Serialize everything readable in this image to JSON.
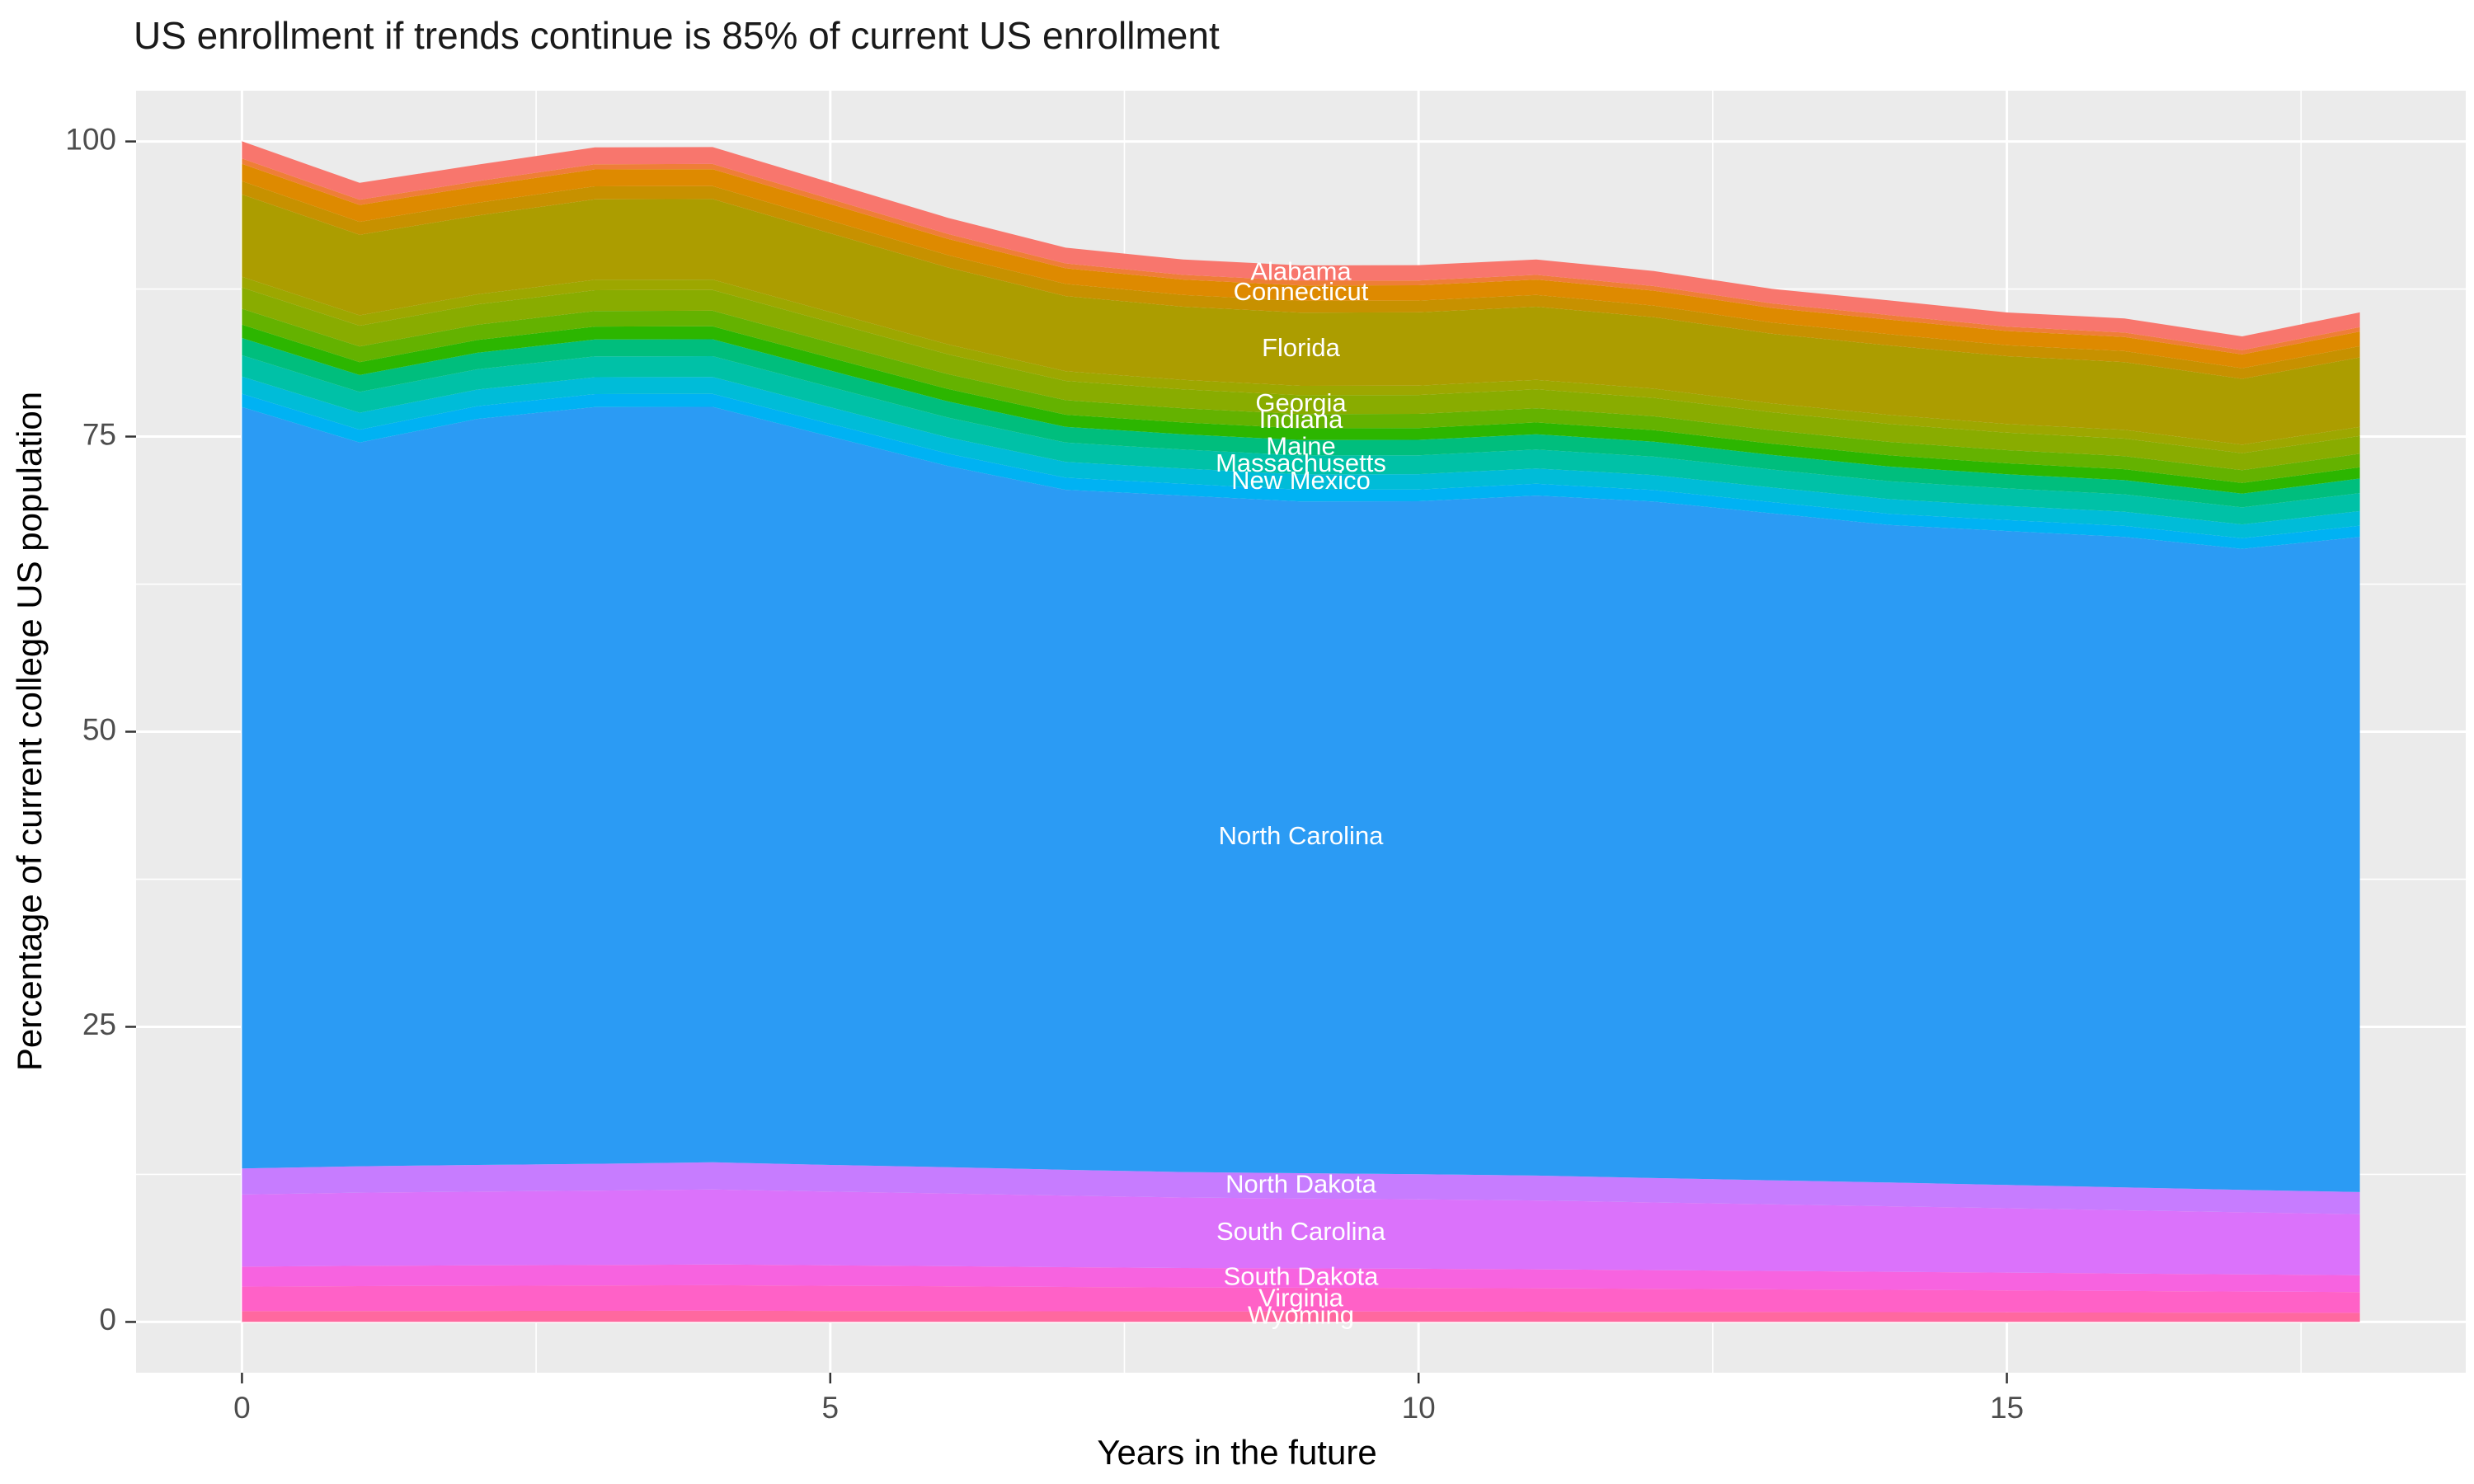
{
  "page": {
    "background": "#FFFFFF"
  },
  "chart_data": {
    "type": "area",
    "stacked": true,
    "title": "US enrollment if trends continue is 85% of current US enrollment",
    "xlabel": "Years in the future",
    "ylabel": "Percentage of current college US population",
    "panel_bg": "#EBEBEB",
    "grid_color": "#FFFFFF",
    "tick_label_color": "#4D4D4D",
    "tick_mark_color": "#333333",
    "series_label_color": "#FFFFFF",
    "x": [
      0,
      1,
      2,
      3,
      4,
      5,
      6,
      7,
      8,
      9,
      10,
      11,
      12,
      13,
      14,
      15,
      16,
      17,
      18
    ],
    "x_ticks": [
      0,
      5,
      10,
      15
    ],
    "y_ticks": [
      0,
      25,
      50,
      75,
      100
    ],
    "x_minor": [
      2.5,
      7.5,
      12.5,
      17.5
    ],
    "y_minor": [
      12.5,
      37.5,
      62.5,
      87.5
    ],
    "x_domain": [
      -0.9,
      18.9
    ],
    "y_domain": [
      -4.3,
      104.3
    ],
    "label_x": 9,
    "series": [
      {
        "name": "Wyoming",
        "color": "#FF689F",
        "values": [
          0.91,
          0.92,
          0.93,
          0.94,
          0.95,
          0.93,
          0.92,
          0.9,
          0.89,
          0.88,
          0.88,
          0.87,
          0.85,
          0.84,
          0.83,
          0.81,
          0.8,
          0.78,
          0.77
        ]
      },
      {
        "name": "Virginia",
        "color": "#FF61C7",
        "values": [
          2.08,
          2.11,
          2.13,
          2.14,
          2.16,
          2.13,
          2.1,
          2.06,
          2.03,
          2.02,
          2.0,
          1.98,
          1.95,
          1.92,
          1.89,
          1.86,
          1.82,
          1.79,
          1.76
        ]
      },
      {
        "name": "South Dakota",
        "color": "#F763E0",
        "values": [
          1.69,
          1.72,
          1.73,
          1.74,
          1.76,
          1.73,
          1.7,
          1.68,
          1.65,
          1.64,
          1.63,
          1.61,
          1.59,
          1.56,
          1.53,
          1.51,
          1.48,
          1.46,
          1.43
        ]
      },
      {
        "name": "South Carolina",
        "color": "#DB72FB",
        "values": [
          6.11,
          6.2,
          6.25,
          6.3,
          6.35,
          6.25,
          6.16,
          6.06,
          5.97,
          5.92,
          5.88,
          5.83,
          5.73,
          5.64,
          5.55,
          5.45,
          5.36,
          5.26,
          5.17
        ]
      },
      {
        "name": "North Dakota",
        "color": "#C77CFF",
        "values": [
          2.21,
          2.24,
          2.26,
          2.28,
          2.3,
          2.26,
          2.23,
          2.19,
          2.16,
          2.14,
          2.13,
          2.11,
          2.07,
          2.04,
          2.01,
          1.97,
          1.94,
          1.9,
          1.87
        ]
      },
      {
        "name": "North Carolina",
        "color": "#2B9BF4",
        "values": [
          64.5,
          61.3,
          63.2,
          64.1,
          64.0,
          61.7,
          59.4,
          57.6,
          57.3,
          56.9,
          57.0,
          57.6,
          57.3,
          56.5,
          55.7,
          55.4,
          55.1,
          54.3,
          55.5
        ]
      },
      {
        "name": "",
        "color": "#00B2F3",
        "values": [
          1.13,
          1.1,
          1.08,
          1.1,
          1.1,
          1.08,
          1.05,
          1.03,
          1.0,
          1.0,
          1.0,
          1.0,
          0.98,
          0.95,
          0.95,
          0.93,
          0.93,
          0.9,
          0.95
        ]
      },
      {
        "name": "New Mexico",
        "color": "#00BCD8",
        "values": [
          1.46,
          1.43,
          1.4,
          1.43,
          1.43,
          1.4,
          1.37,
          1.33,
          1.3,
          1.3,
          1.3,
          1.3,
          1.27,
          1.24,
          1.24,
          1.2,
          1.2,
          1.17,
          1.24
        ]
      },
      {
        "name": "Massachusetts",
        "color": "#00C1A7",
        "values": [
          1.8,
          1.76,
          1.72,
          1.76,
          1.76,
          1.72,
          1.68,
          1.64,
          1.6,
          1.6,
          1.6,
          1.6,
          1.56,
          1.52,
          1.52,
          1.48,
          1.48,
          1.44,
          1.52
        ]
      },
      {
        "name": "Maine",
        "color": "#00BE7D",
        "values": [
          1.46,
          1.43,
          1.4,
          1.43,
          1.43,
          1.4,
          1.37,
          1.33,
          1.3,
          1.3,
          1.3,
          1.3,
          1.27,
          1.24,
          1.24,
          1.2,
          1.2,
          1.17,
          1.24
        ]
      },
      {
        "name": "",
        "color": "#2CB600",
        "values": [
          1.13,
          1.1,
          1.08,
          1.1,
          1.1,
          1.08,
          1.05,
          1.03,
          1.0,
          1.0,
          1.0,
          1.0,
          0.98,
          0.95,
          0.95,
          0.93,
          0.93,
          0.9,
          0.95
        ]
      },
      {
        "name": "Indiana",
        "color": "#64B200",
        "values": [
          1.35,
          1.32,
          1.29,
          1.32,
          1.32,
          1.29,
          1.26,
          1.23,
          1.2,
          1.2,
          1.2,
          1.2,
          1.17,
          1.14,
          1.14,
          1.11,
          1.11,
          1.08,
          1.14
        ]
      },
      {
        "name": "Georgia",
        "color": "#89AC00",
        "values": [
          1.8,
          1.76,
          1.72,
          1.76,
          1.76,
          1.72,
          1.68,
          1.64,
          1.6,
          1.6,
          1.6,
          1.6,
          1.56,
          1.52,
          1.52,
          1.48,
          1.48,
          1.44,
          1.52
        ]
      },
      {
        "name": "",
        "color": "#9DA700",
        "values": [
          0.9,
          0.88,
          0.86,
          0.88,
          0.88,
          0.86,
          0.84,
          0.82,
          0.8,
          0.8,
          0.8,
          0.8,
          0.78,
          0.76,
          0.76,
          0.74,
          0.74,
          0.72,
          0.76
        ]
      },
      {
        "name": "Florida",
        "color": "#AC9D00",
        "values": [
          6.98,
          6.82,
          6.67,
          6.82,
          6.82,
          6.67,
          6.51,
          6.36,
          6.2,
          6.2,
          6.2,
          6.2,
          6.05,
          5.89,
          5.89,
          5.74,
          5.74,
          5.58,
          5.89
        ]
      },
      {
        "name": "",
        "color": "#C79100",
        "values": [
          1.13,
          1.1,
          1.08,
          1.1,
          1.1,
          1.08,
          1.05,
          1.03,
          1.0,
          1.0,
          1.0,
          1.0,
          0.98,
          0.95,
          0.95,
          0.93,
          0.93,
          0.9,
          0.95
        ]
      },
      {
        "name": "Connecticut",
        "color": "#DE8A00",
        "values": [
          1.46,
          1.43,
          1.4,
          1.43,
          1.43,
          1.4,
          1.37,
          1.33,
          1.3,
          1.3,
          1.3,
          1.3,
          1.27,
          1.24,
          1.24,
          1.2,
          1.2,
          1.17,
          1.24
        ]
      },
      {
        "name": "",
        "color": "#EF7E37",
        "values": [
          0.45,
          0.44,
          0.43,
          0.44,
          0.44,
          0.43,
          0.42,
          0.41,
          0.4,
          0.4,
          0.4,
          0.4,
          0.39,
          0.38,
          0.38,
          0.37,
          0.37,
          0.36,
          0.38
        ]
      },
      {
        "name": "Alabama",
        "color": "#F8766D",
        "values": [
          1.46,
          1.43,
          1.4,
          1.43,
          1.43,
          1.4,
          1.37,
          1.33,
          1.3,
          1.3,
          1.3,
          1.3,
          1.27,
          1.24,
          1.24,
          1.2,
          1.2,
          1.17,
          1.24
        ]
      }
    ]
  }
}
